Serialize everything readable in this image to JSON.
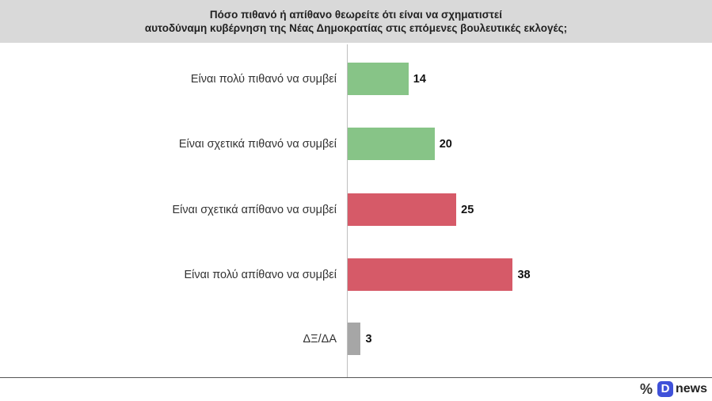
{
  "chart_data": {
    "type": "bar",
    "orientation": "horizontal",
    "title": [
      "Πόσο πιθανό ή απίθανο θεωρείτε ότι είναι να σχηματιστεί",
      "αυτοδύναμη κυβέρνηση της Νέας Δημοκρατίας στις επόμενες βουλευτικές εκλογές;"
    ],
    "categories": [
      "Είναι πολύ πιθανό να συμβεί",
      "Είναι σχετικά πιθανό να συμβεί",
      "Είναι σχετικά απίθανο να συμβεί",
      "Είναι πολύ απίθανο να συμβεί",
      "ΔΞ/ΔΑ"
    ],
    "values": [
      14,
      20,
      25,
      38,
      3
    ],
    "colors": [
      "#87c487",
      "#87c487",
      "#d65a68",
      "#d65a68",
      "#a6a6a6"
    ],
    "xlim": [
      0,
      70
    ],
    "grid": false,
    "data_labels": true
  },
  "brand": {
    "percent_glyph": "%",
    "logo_letter": "D",
    "logo_text": "news"
  }
}
